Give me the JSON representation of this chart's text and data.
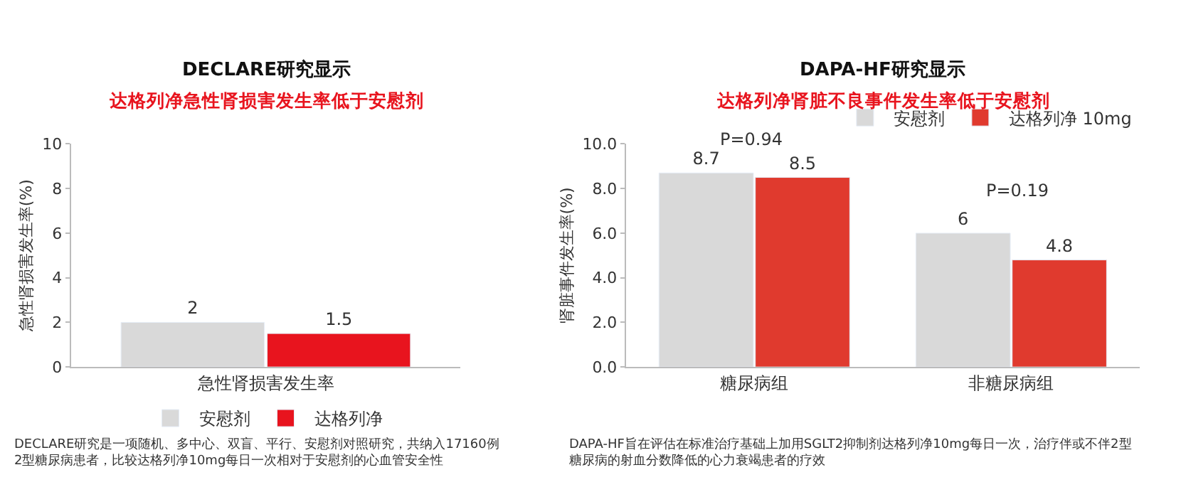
{
  "chart_data": [
    {
      "type": "bar",
      "title": "DECLARE研究显示",
      "subtitle": "达格列净急性肾损害发生率低于安慰剂",
      "ylabel": "急性肾损害发生率(%)",
      "categories": [
        "急性肾损害发生率"
      ],
      "series": [
        {
          "name": "安慰剂",
          "color": "#d9d9d9",
          "values": [
            2
          ]
        },
        {
          "name": "达格列净",
          "color": "#e8141e",
          "values": [
            1.5
          ]
        }
      ],
      "ylim": [
        0,
        10
      ],
      "yticks": [
        0,
        2,
        4,
        6,
        8,
        10
      ],
      "data_labels": true,
      "legend": "bottom",
      "annotations": [
        "DECLARE研究是一项随机、多中心、双盲、平行、安慰剂对照研究，共纳入17160例2型糖尿病患者，比较达格列净10mg每日一次相对于安慰剂的心血管安全性"
      ]
    },
    {
      "type": "bar",
      "title": "DAPA-HF研究显示",
      "subtitle": "达格列净肾脏不良事件发生率低于安慰剂",
      "ylabel": "肾脏事件发生率(%)",
      "categories": [
        "糖尿病组",
        "非糖尿病组"
      ],
      "series": [
        {
          "name": "安慰剂",
          "color": "#d9d9d9",
          "values": [
            8.7,
            6
          ]
        },
        {
          "name": "达格列净 10mg",
          "color": "#e03a2e",
          "values": [
            8.5,
            4.8
          ]
        }
      ],
      "ylim": [
        0,
        10
      ],
      "yticks": [
        {
          "value": 0,
          "label": "0.0"
        },
        {
          "value": 2,
          "label": "2.0"
        },
        {
          "value": 4,
          "label": "4.0"
        },
        {
          "value": 6,
          "label": "6.0"
        },
        {
          "value": 8,
          "label": "8.0"
        },
        {
          "value": 10,
          "label": "10.0"
        }
      ],
      "data_labels": true,
      "legend": "top right",
      "annotations": [
        "P=0.94",
        "P=0.19",
        "DAPA-HF旨在评估在标准治疗基础上加用SGLT2抑制剂达格列净10mg每日一次，治疗伴或不伴2型糖尿病的射血分数降低的心力衰竭患者的疗效"
      ]
    }
  ]
}
